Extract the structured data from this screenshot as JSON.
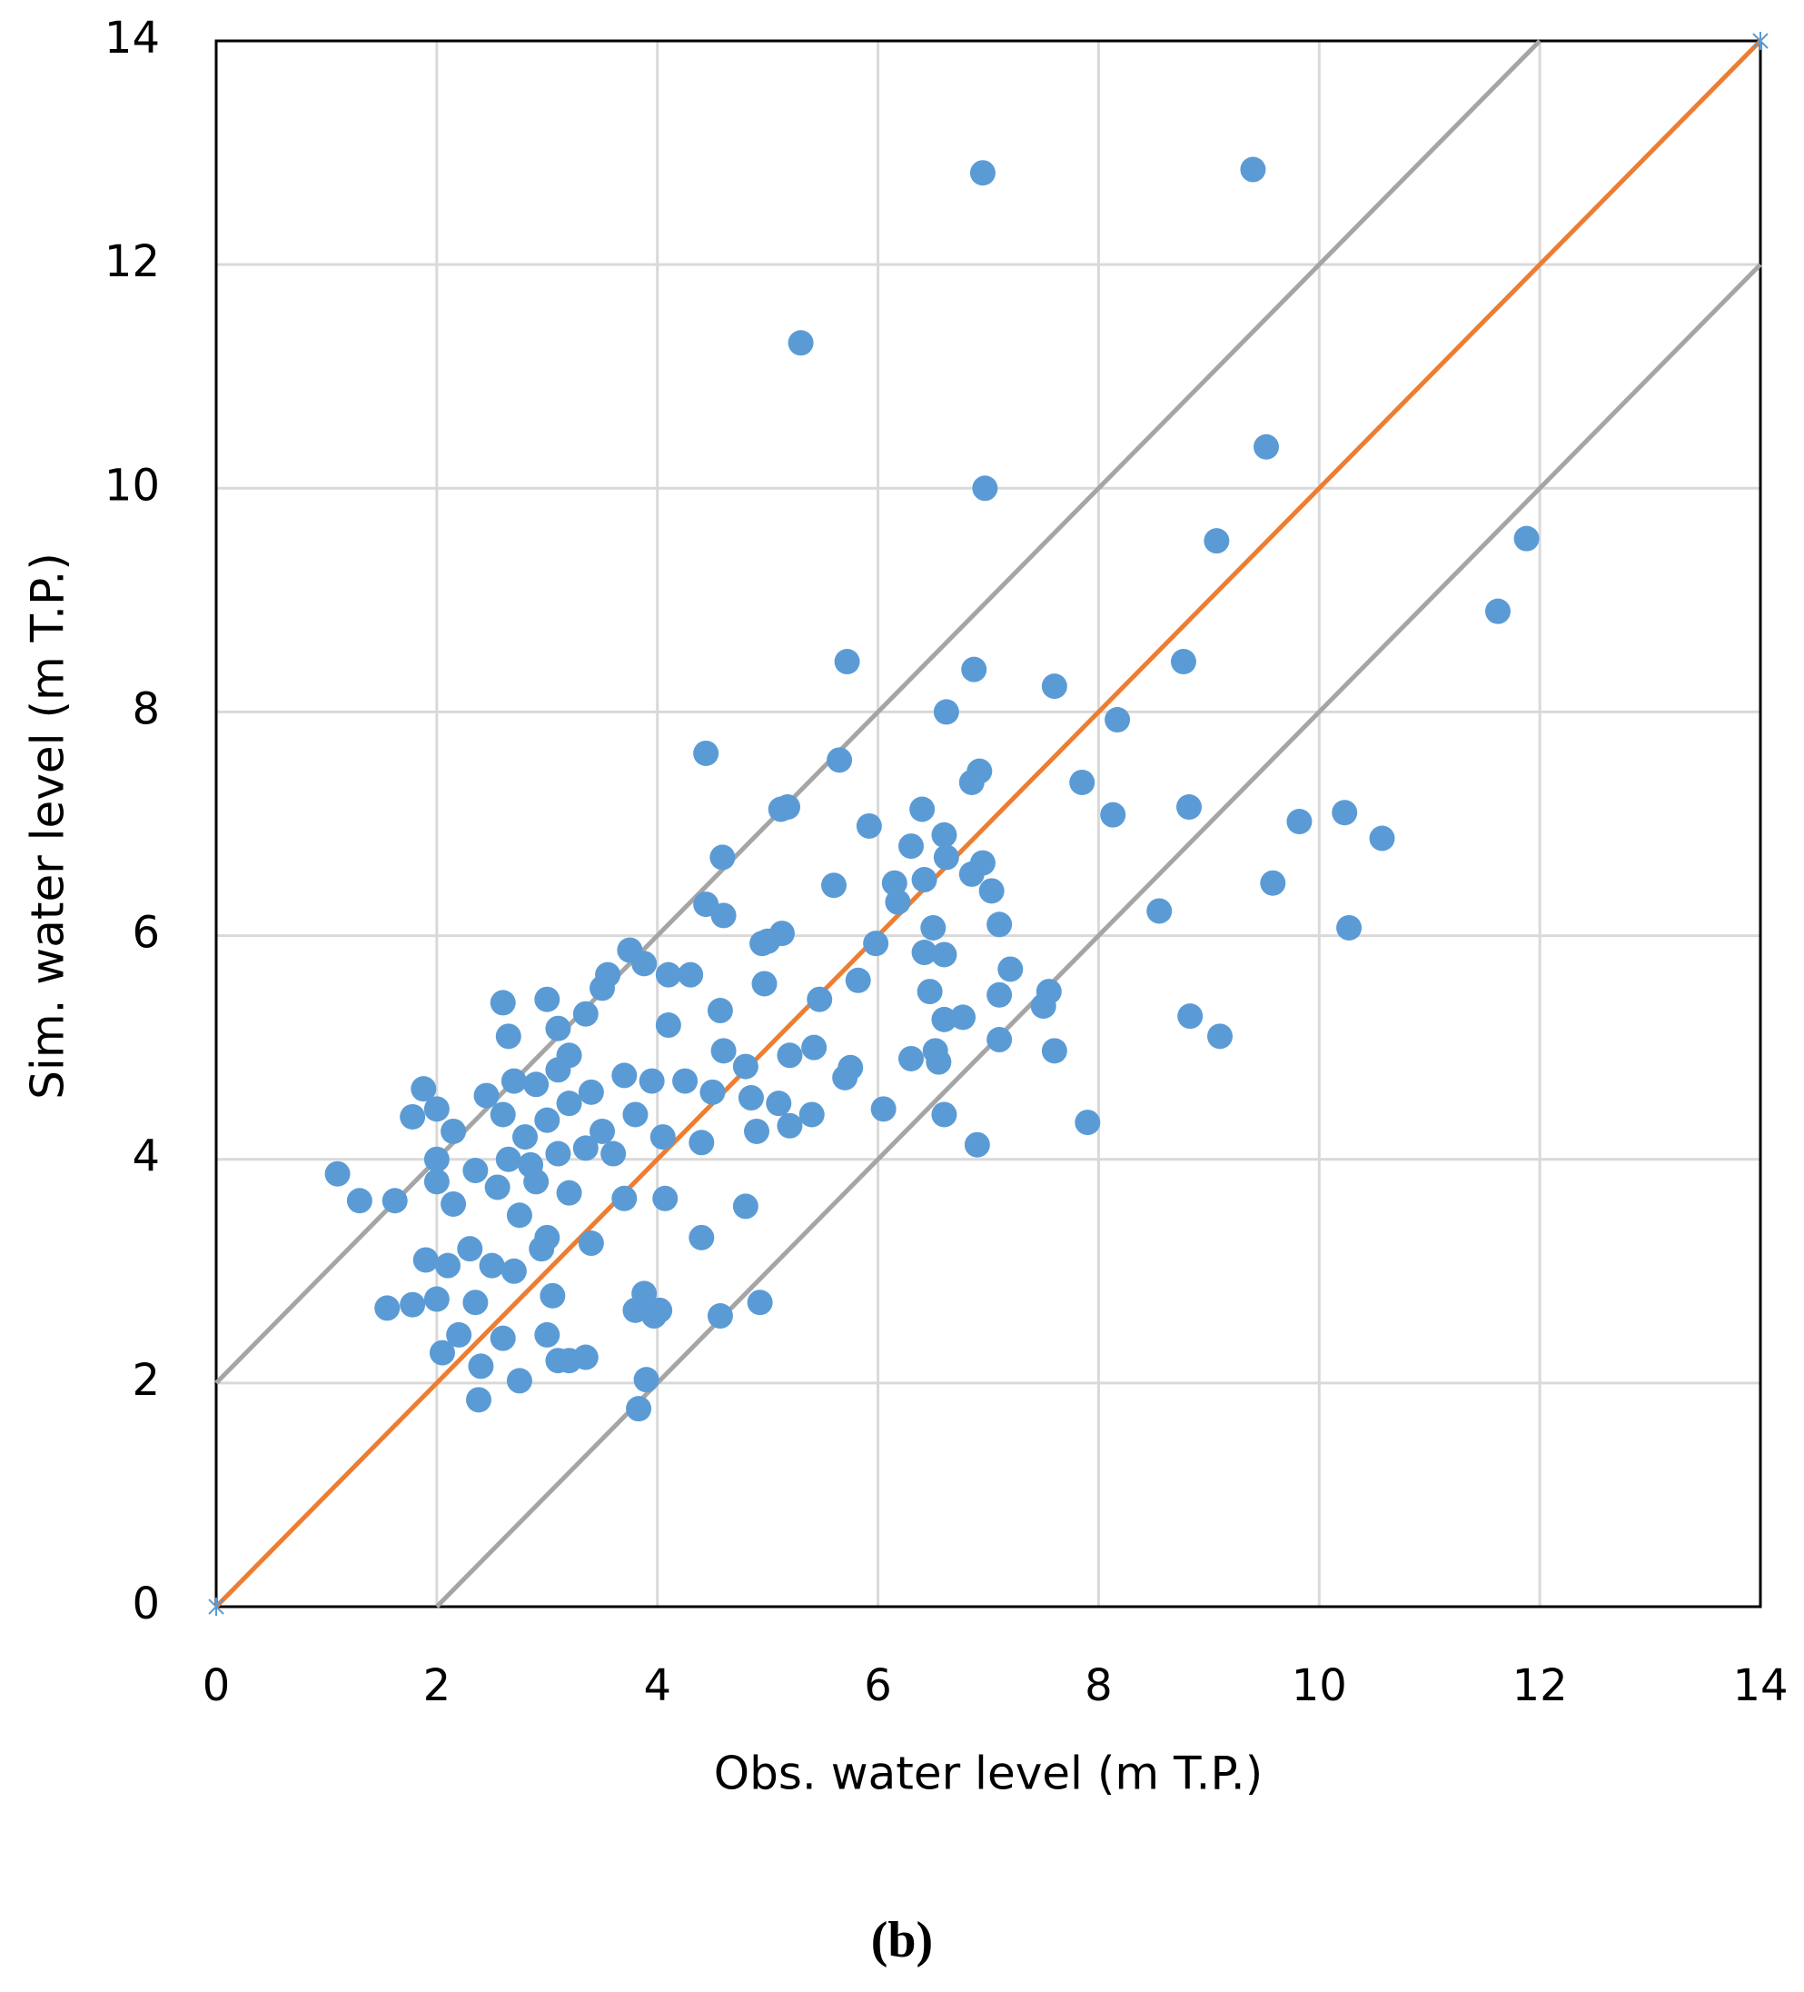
{
  "chart_data": {
    "type": "scatter",
    "x_label": "Obs. water level (m T.P.)",
    "y_label": "Sim. water level (m T.P.)",
    "caption": "(b)",
    "xlim": [
      0,
      14
    ],
    "ylim": [
      0,
      14
    ],
    "xticks": [
      0,
      2,
      4,
      6,
      8,
      10,
      12,
      14
    ],
    "yticks": [
      0,
      2,
      4,
      6,
      8,
      10,
      12,
      14
    ],
    "grid": true,
    "series": [
      {
        "type": "line",
        "color": "#a5a5a5",
        "x": [
          0,
          12
        ],
        "values": [
          2,
          14
        ]
      },
      {
        "type": "line",
        "color": "#a5a5a5",
        "x": [
          2,
          14
        ],
        "values": [
          0,
          12
        ]
      },
      {
        "type": "line",
        "color": "#ed7d31",
        "marker_color": "#5b9bd5",
        "x": [
          0,
          14
        ],
        "values": [
          0,
          14
        ]
      },
      {
        "type": "scatter",
        "color": "#5b9bd5",
        "x": [
          6.95,
          9.4,
          5.3,
          9.52,
          6.97,
          9.07,
          11.88,
          11.62,
          5.72,
          6.87,
          8.77,
          7.6,
          6.62,
          8.17,
          4.44,
          5.65,
          6.92,
          6.85,
          7.85,
          5.12,
          5.18,
          8.82,
          6.4,
          8.13,
          10.23,
          5.92,
          9.82,
          10.57,
          6.6,
          6.3,
          4.59,
          6.62,
          6.95,
          6.85,
          6.15,
          6.42,
          9.58,
          5.6,
          7.03,
          4.44,
          6.18,
          4.6,
          8.55,
          7.1,
          10.27,
          5.13,
          5.0,
          4.95,
          5.98,
          6.5,
          6.42,
          6.6,
          3.75,
          3.88,
          4.1,
          4.3,
          3.55,
          7.2,
          5.82,
          4.97,
          3.5,
          3.0,
          2.6,
          5.47,
          6.47,
          7.1,
          7.55,
          7.5,
          4.57,
          6.6,
          6.77,
          8.83,
          3.35,
          3.1,
          2.65,
          4.1,
          9.1,
          7.1,
          5.42,
          6.52,
          7.6,
          4.6,
          3.2,
          5.2,
          6.3,
          6.55,
          5.75,
          4.8,
          5.7,
          1.88,
          2.0,
          2.45,
          2.7,
          2.9,
          3.1,
          3.4,
          3.7,
          3.95,
          4.25,
          4.5,
          4.85,
          5.1,
          5.4,
          6.05,
          6.6,
          7.9,
          6.9,
          1.78,
          2.15,
          2.6,
          2.8,
          3.0,
          3.2,
          3.5,
          3.8,
          4.05,
          4.4,
          4.9,
          5.2,
          2.0,
          2.35,
          2.65,
          2.85,
          3.1,
          3.35,
          3.6,
          1.1,
          1.3,
          1.62,
          2.0,
          2.15,
          2.55,
          2.9,
          3.2,
          3.7,
          4.07,
          4.8,
          2.75,
          3.0,
          3.4,
          4.4,
          1.9,
          2.1,
          2.3,
          2.5,
          2.7,
          2.95,
          1.55,
          1.78,
          2.0,
          2.35,
          3.05,
          3.8,
          3.97,
          4.02,
          4.57,
          4.93,
          3.88,
          2.6,
          3.0,
          2.2,
          2.05,
          2.4,
          3.1,
          3.2,
          3.35,
          2.75,
          3.9,
          2.38,
          3.83
        ],
        "values": [
          12.82,
          12.85,
          11.3,
          10.37,
          10.0,
          9.53,
          9.55,
          8.9,
          8.45,
          8.38,
          8.45,
          8.23,
          8.0,
          7.93,
          7.63,
          7.57,
          7.47,
          7.37,
          7.37,
          7.13,
          7.15,
          7.15,
          7.13,
          7.08,
          7.1,
          6.98,
          7.02,
          6.87,
          6.9,
          6.8,
          6.7,
          6.7,
          6.65,
          6.55,
          6.47,
          6.5,
          6.47,
          6.45,
          6.4,
          6.28,
          6.3,
          6.18,
          6.22,
          6.1,
          6.07,
          6.02,
          5.95,
          5.93,
          5.93,
          6.07,
          5.85,
          5.83,
          5.87,
          5.75,
          5.65,
          5.65,
          5.65,
          5.7,
          5.6,
          5.57,
          5.53,
          5.43,
          5.4,
          5.43,
          5.5,
          5.47,
          5.5,
          5.37,
          5.33,
          5.25,
          5.27,
          5.28,
          5.3,
          5.17,
          5.1,
          5.2,
          5.1,
          5.07,
          5.0,
          4.97,
          4.97,
          4.97,
          4.93,
          4.93,
          4.9,
          4.87,
          4.82,
          4.83,
          4.73,
          4.63,
          4.45,
          4.57,
          4.7,
          4.67,
          4.8,
          4.6,
          4.75,
          4.7,
          4.7,
          4.6,
          4.55,
          4.5,
          4.4,
          4.45,
          4.4,
          4.33,
          4.13,
          4.38,
          4.25,
          4.4,
          4.2,
          4.35,
          4.5,
          4.25,
          4.4,
          4.2,
          4.15,
          4.25,
          4.3,
          4.0,
          3.9,
          4.0,
          3.95,
          4.05,
          4.1,
          4.05,
          3.87,
          3.63,
          3.63,
          3.8,
          3.6,
          3.75,
          3.8,
          3.7,
          3.65,
          3.65,
          3.58,
          3.5,
          3.3,
          3.25,
          3.3,
          3.1,
          3.05,
          3.2,
          3.05,
          3.0,
          3.2,
          2.67,
          2.7,
          2.75,
          2.72,
          2.78,
          2.65,
          2.6,
          2.65,
          2.6,
          2.72,
          2.8,
          2.4,
          2.43,
          2.43,
          2.27,
          2.15,
          2.2,
          2.2,
          2.23,
          2.02,
          2.03,
          1.85,
          1.77
        ]
      }
    ]
  }
}
